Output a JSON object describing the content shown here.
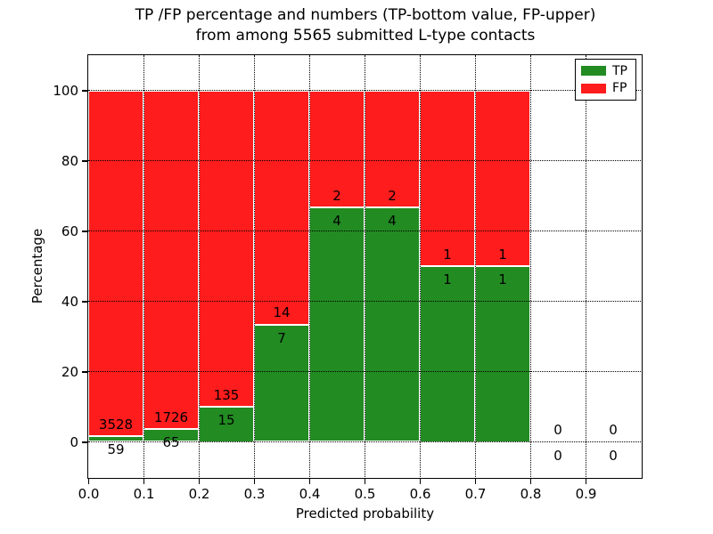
{
  "title": {
    "line1": "TP /FP percentage and numbers (TP-bottom value, FP-upper)",
    "line2": "from among 5565 submitted L-type contacts"
  },
  "legend": {
    "items": [
      {
        "label": "TP",
        "color": "#228b22"
      },
      {
        "label": "FP",
        "color": "#ff1c1c"
      }
    ]
  },
  "axes": {
    "xlabel": "Predicted probability",
    "ylabel": "Percentage"
  },
  "chart_data": {
    "type": "bar",
    "stacked": true,
    "normalized_to_percent": true,
    "title": "TP /FP percentage and numbers (TP-bottom value, FP-upper) from among 5565 submitted L-type contacts",
    "xlabel": "Predicted probability",
    "ylabel": "Percentage",
    "xlim": [
      0.0,
      1.0
    ],
    "ylim": [
      -10,
      110
    ],
    "x_tick_labels": [
      "0.0",
      "0.1",
      "0.2",
      "0.3",
      "0.4",
      "0.5",
      "0.6",
      "0.7",
      "0.8",
      "0.9"
    ],
    "x_tick_values": [
      0.0,
      0.1,
      0.2,
      0.3,
      0.4,
      0.5,
      0.6,
      0.7,
      0.8,
      0.9
    ],
    "y_tick_values": [
      0,
      20,
      40,
      60,
      80,
      100
    ],
    "grid": true,
    "grid_style": "dotted",
    "legend_position": "upper right",
    "bin_width": 0.1,
    "total_contacts": 5565,
    "series": [
      {
        "name": "TP",
        "color": "#228b22",
        "position": "bottom"
      },
      {
        "name": "FP",
        "color": "#ff1c1c",
        "position": "top"
      }
    ],
    "bins": [
      {
        "x_start": 0.0,
        "tp_count": 59,
        "fp_count": 3528,
        "tp_pct": 1.64,
        "fp_pct": 98.36
      },
      {
        "x_start": 0.1,
        "tp_count": 65,
        "fp_count": 1726,
        "tp_pct": 3.63,
        "fp_pct": 96.37
      },
      {
        "x_start": 0.2,
        "tp_count": 15,
        "fp_count": 135,
        "tp_pct": 10.0,
        "fp_pct": 90.0
      },
      {
        "x_start": 0.3,
        "tp_count": 7,
        "fp_count": 14,
        "tp_pct": 33.33,
        "fp_pct": 66.67
      },
      {
        "x_start": 0.4,
        "tp_count": 4,
        "fp_count": 2,
        "tp_pct": 66.67,
        "fp_pct": 33.33
      },
      {
        "x_start": 0.5,
        "tp_count": 4,
        "fp_count": 2,
        "tp_pct": 66.67,
        "fp_pct": 33.33
      },
      {
        "x_start": 0.6,
        "tp_count": 1,
        "fp_count": 1,
        "tp_pct": 50.0,
        "fp_pct": 50.0
      },
      {
        "x_start": 0.7,
        "tp_count": 1,
        "fp_count": 1,
        "tp_pct": 50.0,
        "fp_pct": 50.0
      },
      {
        "x_start": 0.8,
        "tp_count": 0,
        "fp_count": 0,
        "tp_pct": 0,
        "fp_pct": 0
      },
      {
        "x_start": 0.9,
        "tp_count": 0,
        "fp_count": 0,
        "tp_pct": 0,
        "fp_pct": 0
      }
    ]
  }
}
